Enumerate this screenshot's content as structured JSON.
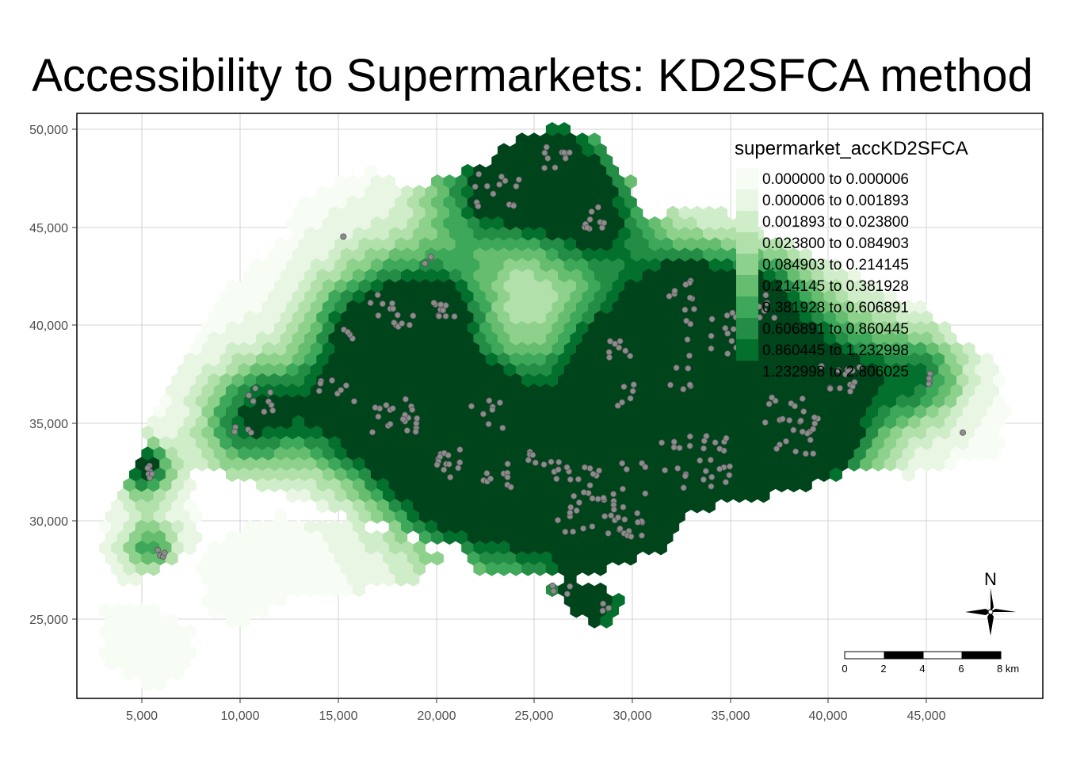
{
  "title": "Accessibility to Supermarkets: KD2SFCA method",
  "axes": {
    "x_ticks": [
      "5,000",
      "10,000",
      "15,000",
      "20,000",
      "25,000",
      "30,000",
      "35,000",
      "40,000",
      "45,000"
    ],
    "y_ticks": [
      "50,000",
      "45,000",
      "40,000",
      "35,000",
      "30,000",
      "25,000"
    ]
  },
  "legend": {
    "title": "supermarket_accKD2SFCA",
    "classes": [
      {
        "label": "0.000000 to 0.000006",
        "color": "#f7fcf5"
      },
      {
        "label": "0.000006 to 0.001893",
        "color": "#e8f6e3"
      },
      {
        "label": "0.001893 to 0.023800",
        "color": "#d0edca"
      },
      {
        "label": "0.023800 to 0.084903",
        "color": "#b2e0ab"
      },
      {
        "label": "0.084903 to 0.214145",
        "color": "#8ed18c"
      },
      {
        "label": "0.214145 to 0.381928",
        "color": "#66bd6f"
      },
      {
        "label": "0.381928 to 0.606891",
        "color": "#3da75a"
      },
      {
        "label": "0.606891 to 0.860445",
        "color": "#238c45"
      },
      {
        "label": "0.860445 to 1.232998",
        "color": "#03702e"
      },
      {
        "label": "1.232998 to 2.806025",
        "color": "#00441b"
      }
    ]
  },
  "scale_bar": {
    "labels": [
      "0",
      "2",
      "4",
      "6",
      "8 km"
    ]
  },
  "north_arrow": {
    "label": "N",
    "icon": "compass-rose-icon"
  },
  "colors": {
    "supermarket_point": "#8c8c8c",
    "supermarket_outline": "#555555",
    "grid": "#c8c8c8"
  }
}
